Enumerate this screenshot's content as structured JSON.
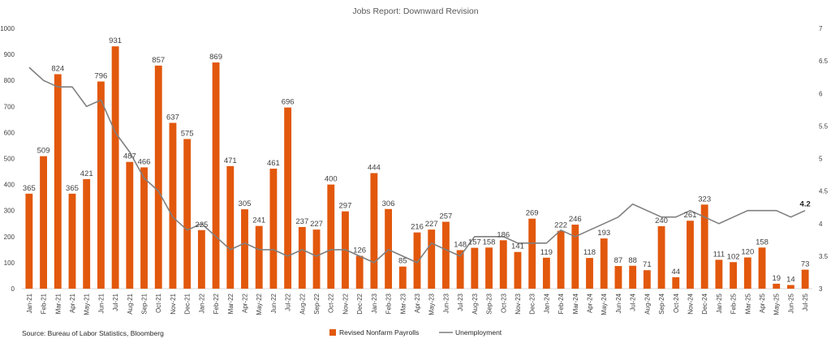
{
  "chart_data": {
    "type": "bar",
    "title": "Jobs Report: Downward Revision",
    "source": "Source: Bureau of Labor Statistics, Bloomberg",
    "categories": [
      "Jan-21",
      "Feb-21",
      "Mar-21",
      "Apr-21",
      "May-21",
      "Jun-21",
      "Jul-21",
      "Aug-21",
      "Sep-21",
      "Oct-21",
      "Nov-21",
      "Dec-21",
      "Jan-22",
      "Feb-22",
      "Mar-22",
      "Apr-22",
      "May-22",
      "Jun-22",
      "Jul-22",
      "Aug-22",
      "Sep-22",
      "Oct-22",
      "Nov-22",
      "Dec-22",
      "Jan-23",
      "Feb-23",
      "Mar-23",
      "Apr-23",
      "May-23",
      "Jun-23",
      "Jul-23",
      "Aug-23",
      "Sep-23",
      "Oct-23",
      "Nov-23",
      "Dec-23",
      "Jan-24",
      "Feb-24",
      "Mar-24",
      "Apr-24",
      "May-24",
      "Jun-24",
      "Jul-24",
      "Aug-24",
      "Sep-24",
      "Oct-24",
      "Nov-24",
      "Dec-24",
      "Jan-25",
      "Feb-25",
      "Mar-25",
      "Apr-25",
      "May-25",
      "Jun-25",
      "Jul-25"
    ],
    "series": [
      {
        "name": "Revised Nonfarm Payrolls",
        "type": "bar",
        "axis": "left",
        "color": "#E2580D",
        "values": [
          365,
          509,
          824,
          365,
          421,
          796,
          931,
          487,
          466,
          857,
          637,
          575,
          225,
          869,
          471,
          305,
          241,
          461,
          696,
          237,
          227,
          400,
          297,
          126,
          444,
          306,
          85,
          216,
          227,
          257,
          148,
          157,
          158,
          186,
          141,
          269,
          119,
          222,
          246,
          118,
          193,
          87,
          88,
          71,
          240,
          44,
          261,
          323,
          111,
          102,
          120,
          158,
          19,
          14,
          73
        ]
      },
      {
        "name": "Unemployment",
        "type": "line",
        "axis": "right",
        "color": "#7F7F7F",
        "values": [
          6.4,
          6.2,
          6.1,
          6.1,
          5.8,
          5.9,
          5.4,
          5.1,
          4.7,
          4.5,
          4.1,
          3.9,
          4.0,
          3.8,
          3.6,
          3.7,
          3.6,
          3.6,
          3.5,
          3.6,
          3.5,
          3.6,
          3.6,
          3.5,
          3.4,
          3.6,
          3.5,
          3.4,
          3.7,
          3.6,
          3.5,
          3.8,
          3.8,
          3.8,
          3.7,
          3.7,
          3.7,
          3.9,
          3.8,
          3.9,
          4.0,
          4.1,
          4.3,
          4.2,
          4.1,
          4.1,
          4.2,
          4.1,
          4.0,
          4.1,
          4.2,
          4.2,
          4.2,
          4.1,
          4.2
        ],
        "last_label": "4.2"
      }
    ],
    "y_left": {
      "ylim": [
        0,
        1000
      ],
      "ticks": [
        0,
        100,
        200,
        300,
        400,
        500,
        600,
        700,
        800,
        900,
        1000
      ]
    },
    "y_right": {
      "ylim": [
        3,
        7
      ],
      "ticks": [
        "3",
        "3.5",
        "4",
        "4.5",
        "5",
        "5.5",
        "6",
        "6.5",
        "7"
      ]
    },
    "grid": false,
    "legend": {
      "placement": "bottom-center",
      "entries": [
        "Revised Nonfarm Payrolls",
        "Unemployment"
      ]
    }
  }
}
